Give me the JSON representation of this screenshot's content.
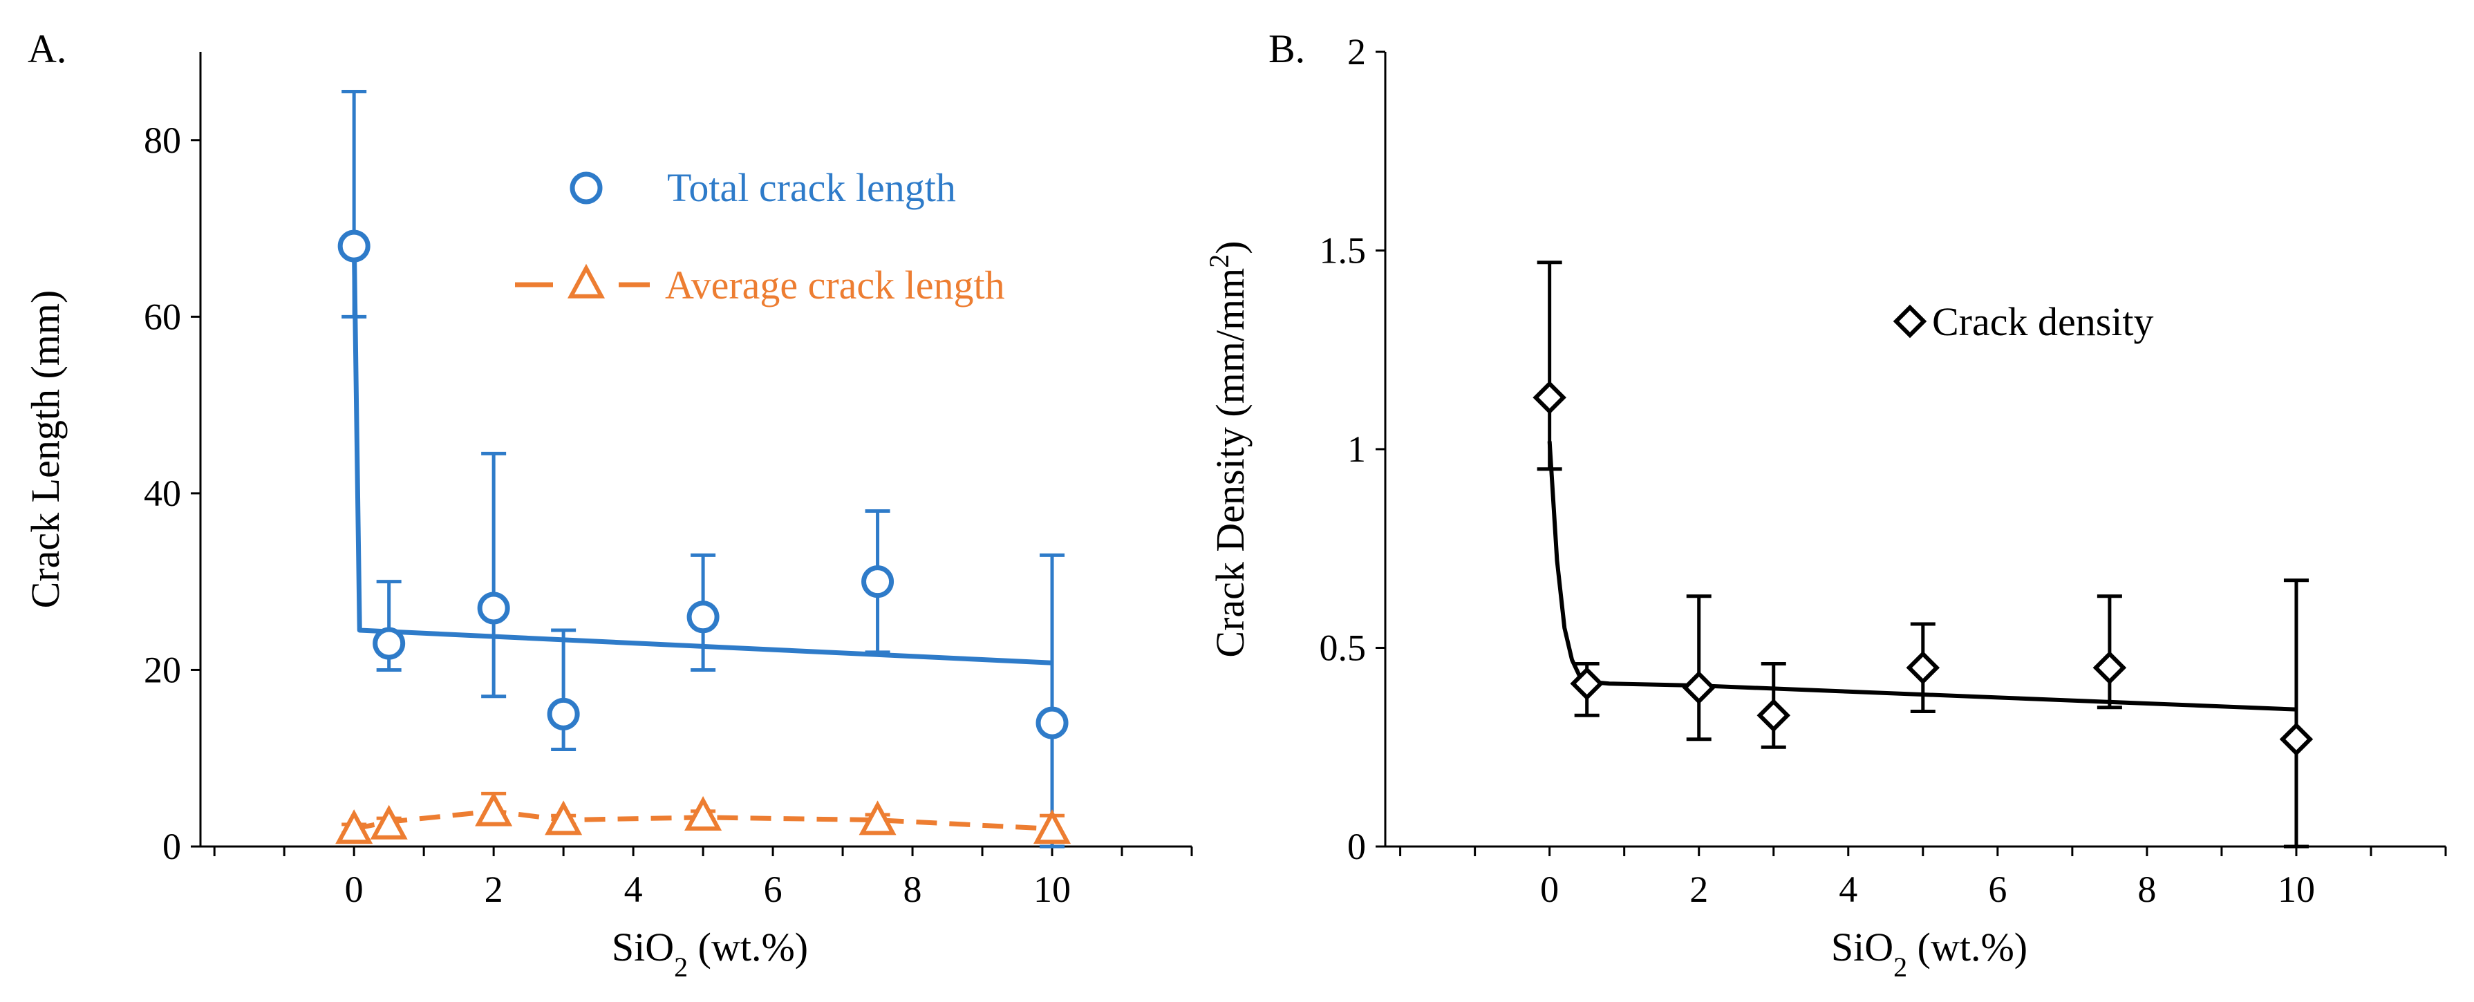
{
  "colors": {
    "total": "#2E7BC9",
    "average": "#ED7D31",
    "density": "#000000",
    "axis": "#000000"
  },
  "chart_data": [
    {
      "panel": "A.",
      "type": "scatter",
      "xlabel": "SiO",
      "xlabel_sub": "2",
      "xlabel_unit": "(wt.%)",
      "ylabel": "Crack Length (mm)",
      "xlim": [
        -2.2,
        12
      ],
      "ylim": [
        0,
        90
      ],
      "xticks": [
        0,
        2,
        4,
        6,
        8,
        10
      ],
      "yticks": [
        0,
        20,
        40,
        60,
        80
      ],
      "legend_position": "top-right",
      "series": [
        {
          "name": "Total crack length",
          "marker": "circle",
          "line": "solid",
          "color": "#2E7BC9",
          "x": [
            0,
            0.5,
            2,
            3,
            5,
            7.5,
            10
          ],
          "y": [
            68,
            23,
            27,
            15,
            26,
            30,
            14
          ],
          "yerr_high": [
            85.5,
            30,
            44.5,
            24.5,
            33,
            38,
            33
          ],
          "yerr_low": [
            60,
            20,
            17,
            11,
            20,
            22,
            0
          ],
          "fit_x": [
            0,
            0.08,
            10
          ],
          "fit_y": [
            69,
            24.5,
            20.8
          ]
        },
        {
          "name": "Average crack length",
          "marker": "triangle",
          "line": "dashed",
          "color": "#ED7D31",
          "x": [
            0,
            0.5,
            2,
            3,
            5,
            7.5,
            10
          ],
          "y": [
            2,
            2.5,
            4,
            3,
            3.5,
            3,
            2
          ],
          "yerr_high": [
            2.5,
            3.2,
            6,
            3.5,
            4,
            3.6,
            3.5
          ],
          "yerr_low": [
            1.5,
            1.8,
            2.5,
            2.5,
            3,
            2.4,
            0.5
          ],
          "fit_x": [
            0,
            0.5,
            2,
            3,
            5,
            7.5,
            10
          ],
          "fit_y": [
            2,
            2.8,
            4,
            3,
            3.3,
            3,
            2
          ]
        }
      ]
    },
    {
      "panel": "B.",
      "type": "scatter",
      "xlabel": "SiO",
      "xlabel_sub": "2",
      "xlabel_unit": "(wt.%)",
      "ylabel": "Crack Density (mm/mm",
      "ylabel_sup": "2",
      "ylabel_end": ")",
      "xlim": [
        -2.2,
        12
      ],
      "ylim": [
        0,
        2
      ],
      "xticks": [
        0,
        2,
        4,
        6,
        8,
        10
      ],
      "yticks": [
        0,
        0.5,
        1,
        1.5,
        2
      ],
      "ytick_labels": [
        "0",
        "0.5",
        "1",
        "1.5",
        "2"
      ],
      "legend_position": "right",
      "series": [
        {
          "name": "Crack density",
          "marker": "diamond",
          "line": "solid",
          "color": "#000000",
          "x": [
            0,
            0.5,
            2,
            3,
            5,
            7.5,
            10
          ],
          "y": [
            1.13,
            0.41,
            0.4,
            0.33,
            0.45,
            0.45,
            0.27
          ],
          "yerr_high": [
            1.47,
            0.46,
            0.63,
            0.46,
            0.56,
            0.63,
            0.67
          ],
          "yerr_low": [
            0.95,
            0.33,
            0.27,
            0.25,
            0.34,
            0.35,
            0
          ],
          "fit_x": [
            0,
            0.1,
            0.2,
            0.3,
            0.4,
            0.5,
            0.8,
            2,
            4,
            6,
            8,
            10
          ],
          "fit_y": [
            1.02,
            0.72,
            0.55,
            0.47,
            0.43,
            0.415,
            0.41,
            0.405,
            0.39,
            0.375,
            0.36,
            0.345
          ]
        }
      ]
    }
  ]
}
